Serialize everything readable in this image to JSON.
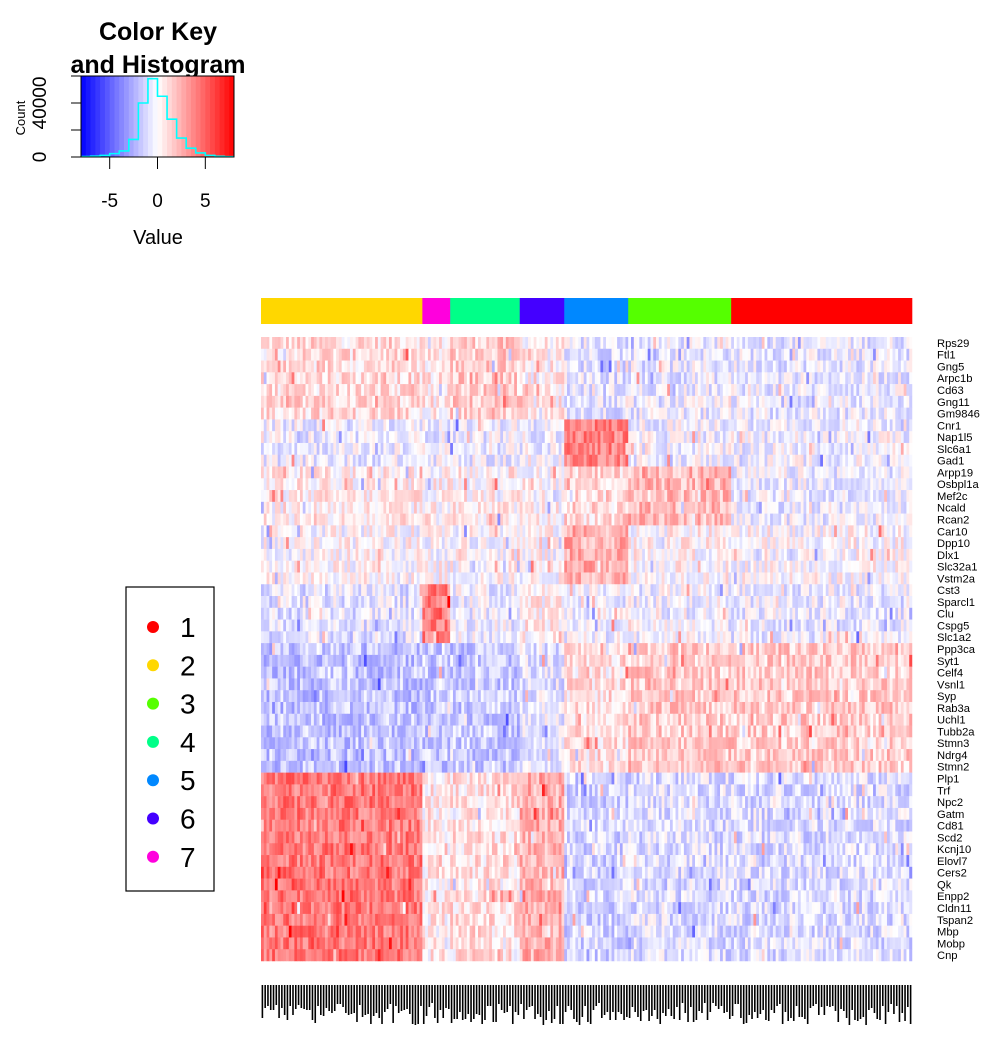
{
  "chart_data": {
    "type": "heatmap",
    "color_key": {
      "title_line1": "Color Key",
      "title_line2": "and Histogram",
      "xlabel": "Value",
      "ylabel": "Count",
      "x_ticks": [
        "-5",
        "0",
        "5"
      ],
      "x_tick_values": [
        -5,
        0,
        5
      ],
      "y_ticks": [
        "0",
        "40000"
      ],
      "y_tick_values": [
        0,
        40000
      ],
      "xlim": [
        -8,
        8
      ],
      "ylim": [
        0,
        60000
      ],
      "histogram_color": "#00FFFF",
      "histogram_values": [
        {
          "x": -7.5,
          "count": 300
        },
        {
          "x": -6.5,
          "count": 600
        },
        {
          "x": -5.5,
          "count": 1200
        },
        {
          "x": -4.5,
          "count": 2500
        },
        {
          "x": -3.5,
          "count": 4500
        },
        {
          "x": -2.5,
          "count": 13000
        },
        {
          "x": -1.5,
          "count": 40000
        },
        {
          "x": -0.5,
          "count": 58000
        },
        {
          "x": 0.5,
          "count": 45000
        },
        {
          "x": 1.5,
          "count": 28000
        },
        {
          "x": 2.5,
          "count": 14000
        },
        {
          "x": 3.5,
          "count": 6500
        },
        {
          "x": 4.5,
          "count": 3000
        },
        {
          "x": 5.5,
          "count": 1200
        },
        {
          "x": 6.5,
          "count": 500
        },
        {
          "x": 7.5,
          "count": 200
        }
      ]
    },
    "colors": {
      "low": "#0000FF",
      "mid": "#FFFFFF",
      "high": "#FF0000"
    },
    "clusters": [
      {
        "id": "2",
        "color": "#FFD700",
        "columns": 58
      },
      {
        "id": "7",
        "color": "#FF00DD",
        "columns": 10
      },
      {
        "id": "4",
        "color": "#00FF88",
        "columns": 25
      },
      {
        "id": "6",
        "color": "#4400FF",
        "columns": 16
      },
      {
        "id": "5",
        "color": "#0088FF",
        "columns": 23
      },
      {
        "id": "3",
        "color": "#55FF00",
        "columns": 37
      },
      {
        "id": "1",
        "color": "#FF0000",
        "columns": 65
      }
    ],
    "genes": [
      "Rps29",
      "Ftl1",
      "Gng5",
      "Arpc1b",
      "Cd63",
      "Gng11",
      "Gm9846",
      "Cnr1",
      "Nap1l5",
      "Slc6a1",
      "Gad1",
      "Arpp19",
      "Osbpl1a",
      "Mef2c",
      "Ncald",
      "Rcan2",
      "Car10",
      "Dpp10",
      "Dlx1",
      "Slc32a1",
      "Vstm2a",
      "Cst3",
      "Sparcl1",
      "Clu",
      "Cspg5",
      "Slc1a2",
      "Ppp3ca",
      "Syt1",
      "Celf4",
      "Vsnl1",
      "Syp",
      "Rab3a",
      "Uchl1",
      "Tubb2a",
      "Stmn3",
      "Ndrg4",
      "Stmn2",
      "Plp1",
      "Trf",
      "Npc2",
      "Gatm",
      "Cd81",
      "Scd2",
      "Kcnj10",
      "Elovl7",
      "Cers2",
      "Qk",
      "Enpp2",
      "Cldn11",
      "Tspan2",
      "Mbp",
      "Mobp",
      "Cnp"
    ],
    "gene_groups": [
      {
        "genes": [
          "Rps29",
          "Ftl1",
          "Gng5",
          "Arpc1b",
          "Cd63",
          "Gng11",
          "Gm9846"
        ],
        "cluster_means": {
          "2": 1.2,
          "7": 0.6,
          "4": 1.6,
          "6": 0.5,
          "5": -0.8,
          "3": -0.6,
          "1": -0.6
        }
      },
      {
        "genes": [
          "Cnr1",
          "Nap1l5",
          "Slc6a1",
          "Gad1"
        ],
        "cluster_means": {
          "2": -0.5,
          "7": -0.4,
          "4": -0.5,
          "6": -0.4,
          "5": 4.0,
          "3": -0.3,
          "1": -0.3
        }
      },
      {
        "genes": [
          "Arpp19",
          "Osbpl1a",
          "Mef2c",
          "Ncald",
          "Rcan2"
        ],
        "cluster_means": {
          "2": 0.5,
          "7": 0.4,
          "4": 0.5,
          "6": 0.3,
          "5": 1.2,
          "3": 2.2,
          "1": -0.5
        }
      },
      {
        "genes": [
          "Car10",
          "Dpp10",
          "Dlx1",
          "Slc32a1",
          "Vstm2a"
        ],
        "cluster_means": {
          "2": 0.1,
          "7": 0.1,
          "4": 0.1,
          "6": 0.1,
          "5": 2.5,
          "3": 0.3,
          "1": 0.1
        }
      },
      {
        "genes": [
          "Cst3",
          "Sparcl1",
          "Clu",
          "Cspg5",
          "Slc1a2"
        ],
        "cluster_means": {
          "2": -0.8,
          "7": 4.0,
          "4": -0.4,
          "6": 0.5,
          "5": -0.4,
          "3": -0.3,
          "1": -0.5
        }
      },
      {
        "genes": [
          "Ppp3ca",
          "Syt1",
          "Celf4",
          "Vsnl1",
          "Syp",
          "Rab3a",
          "Uchl1",
          "Tubb2a",
          "Stmn3",
          "Ndrg4",
          "Stmn2"
        ],
        "cluster_means": {
          "2": -1.8,
          "7": -1.6,
          "4": -1.6,
          "6": -0.8,
          "5": 1.0,
          "3": 1.6,
          "1": 1.6
        }
      },
      {
        "genes": [
          "Plp1",
          "Trf",
          "Npc2",
          "Gatm",
          "Cd81",
          "Scd2",
          "Kcnj10",
          "Elovl7",
          "Cers2",
          "Qk",
          "Enpp2",
          "Cldn11",
          "Tspan2",
          "Mbp",
          "Mobp",
          "Cnp"
        ],
        "cluster_means": {
          "2": 4.2,
          "7": 0.6,
          "4": 1.0,
          "6": 2.5,
          "5": -1.2,
          "3": -1.0,
          "1": -1.0
        }
      }
    ],
    "legend": [
      {
        "label": "1",
        "color": "#FF0000"
      },
      {
        "label": "2",
        "color": "#FFD700"
      },
      {
        "label": "3",
        "color": "#55FF00"
      },
      {
        "label": "4",
        "color": "#00FF88"
      },
      {
        "label": "5",
        "color": "#0088FF"
      },
      {
        "label": "6",
        "color": "#4400FF"
      },
      {
        "label": "7",
        "color": "#FF00DD"
      }
    ]
  }
}
